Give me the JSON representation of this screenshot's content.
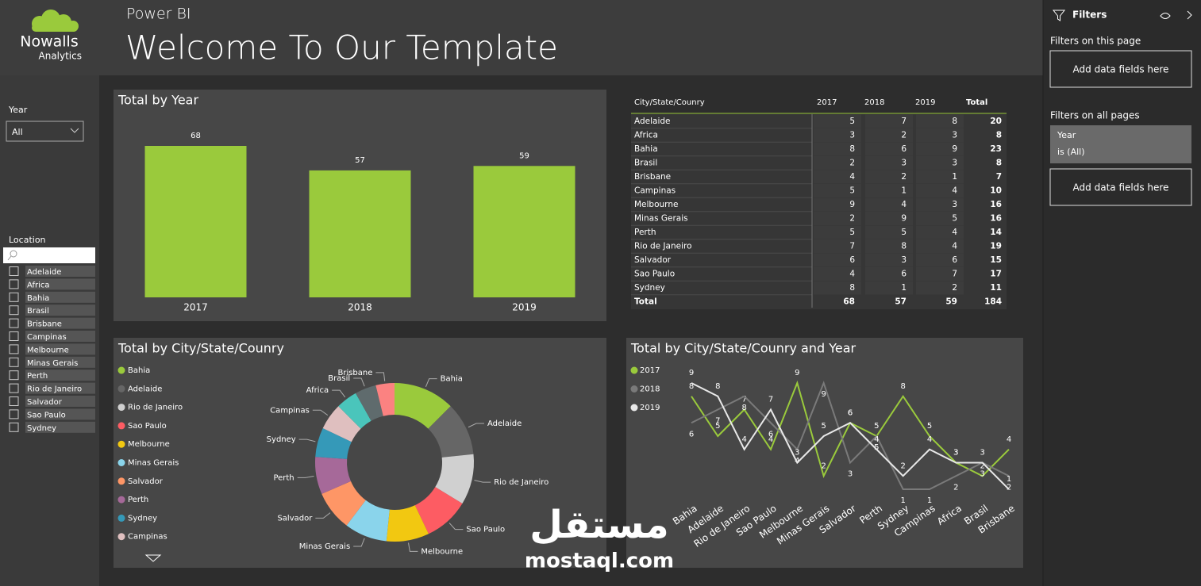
{
  "header": {
    "logo_name": "Nowalls",
    "logo_sub": "Analytics",
    "app": "Power BI",
    "title": "Welcome To Our Template"
  },
  "slicers": {
    "year_label": "Year",
    "year_value": "All",
    "location_label": "Location",
    "locations": [
      "Adelaide",
      "Africa",
      "Bahia",
      "Brasil",
      "Brisbane",
      "Campinas",
      "Melbourne",
      "Minas Gerais",
      "Perth",
      "Rio de Janeiro",
      "Salvador",
      "Sao Paulo",
      "Sydney"
    ]
  },
  "filters": {
    "title": "Filters",
    "this_page": "Filters on this page",
    "add_this_page": "Add data fields here",
    "all_pages": "Filters on all pages",
    "card_field": "Year",
    "card_condition": "is (All)",
    "add_all_pages": "Add data fields here"
  },
  "watermark": {
    "arabic": "مستقل",
    "latin": "mostaql.com"
  },
  "table": {
    "columns": [
      "City/State/Counry",
      "2017",
      "2018",
      "2019",
      "Total"
    ],
    "rows": [
      [
        "Adelaide",
        5,
        7,
        8,
        20
      ],
      [
        "Africa",
        3,
        2,
        3,
        8
      ],
      [
        "Bahia",
        8,
        6,
        9,
        23
      ],
      [
        "Brasil",
        2,
        3,
        3,
        8
      ],
      [
        "Brisbane",
        4,
        2,
        1,
        7
      ],
      [
        "Campinas",
        5,
        1,
        4,
        10
      ],
      [
        "Melbourne",
        9,
        4,
        3,
        16
      ],
      [
        "Minas Gerais",
        2,
        9,
        5,
        16
      ],
      [
        "Perth",
        5,
        5,
        4,
        14
      ],
      [
        "Rio de Janeiro",
        7,
        8,
        4,
        19
      ],
      [
        "Salvador",
        6,
        3,
        6,
        15
      ],
      [
        "Sao Paulo",
        4,
        6,
        7,
        17
      ],
      [
        "Sydney",
        8,
        1,
        2,
        11
      ],
      [
        "Total",
        68,
        57,
        59,
        184
      ]
    ]
  },
  "chart_data": [
    {
      "type": "bar",
      "title": "Total by Year",
      "categories": [
        "2017",
        "2018",
        "2019"
      ],
      "values": [
        68,
        57,
        59
      ],
      "color": "#9aca3c"
    },
    {
      "type": "pie",
      "title": "Total by City/State/Counry",
      "categories": [
        "Bahia",
        "Adelaide",
        "Rio de Janeiro",
        "Sao Paulo",
        "Melbourne",
        "Minas Gerais",
        "Salvador",
        "Perth",
        "Sydney",
        "Campinas",
        "Africa",
        "Brasil",
        "Brisbane"
      ],
      "values": [
        23,
        20,
        19,
        17,
        16,
        16,
        15,
        14,
        11,
        10,
        8,
        8,
        7
      ],
      "colors": [
        "#9aca3c",
        "#666666",
        "#d0d0d0",
        "#fd5c63",
        "#f2c811",
        "#8ad4eb",
        "#fe9666",
        "#a66999",
        "#3599b8",
        "#dfbfbf",
        "#4ac5bb",
        "#5f6b6d",
        "#fb8281"
      ]
    },
    {
      "type": "line",
      "title": "Total by City/State/Counry and Year",
      "categories": [
        "Bahia",
        "Adelaide",
        "Rio de Janeiro",
        "Sao Paulo",
        "Melbourne",
        "Minas Gerais",
        "Salvador",
        "Perth",
        "Sydney",
        "Campinas",
        "Africa",
        "Brasil",
        "Brisbane"
      ],
      "series": [
        {
          "name": "2017",
          "color": "#9aca3c",
          "values": [
            8,
            5,
            7,
            4,
            9,
            2,
            6,
            5,
            8,
            5,
            3,
            2,
            4
          ]
        },
        {
          "name": "2018",
          "color": "#7a7a7a",
          "values": [
            6,
            7,
            8,
            6,
            4,
            9,
            3,
            5,
            1,
            1,
            2,
            3,
            2
          ]
        },
        {
          "name": "2019",
          "color": "#e8e8e8",
          "values": [
            9,
            8,
            4,
            7,
            3,
            5,
            6,
            4,
            2,
            4,
            3,
            3,
            1
          ]
        }
      ]
    }
  ]
}
